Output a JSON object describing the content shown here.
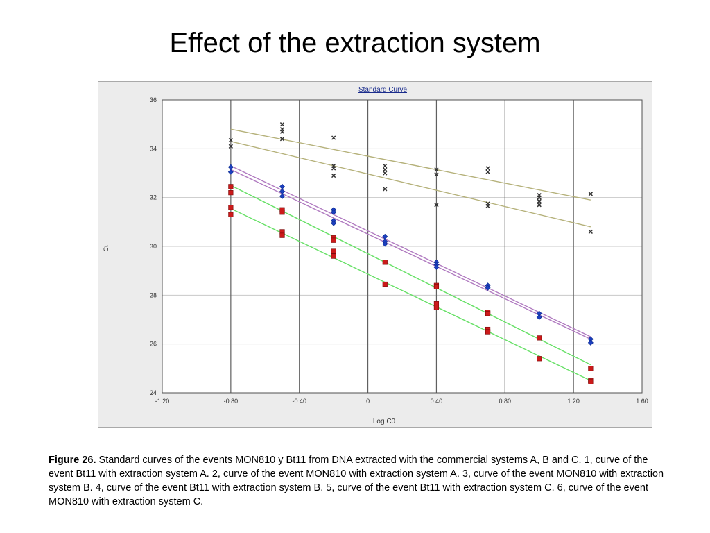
{
  "slide": {
    "title": "Effect of the extraction system"
  },
  "caption": {
    "label": "Figure 26.",
    "text": " Standard curves of the events MON810 y Bt11 from DNA extracted with the commercial systems A, B and C. 1, curve of the event Bt11 with extraction system A. 2, curve of the event MON810 with extraction system A. 3, curve of the event MON810 with extraction system B. 4, curve of the event Bt11 with extraction system B. 5, curve of the event Bt11 with extraction system C. 6, curve of the event MON810 with extraction system C."
  },
  "chart_data": {
    "type": "scatter",
    "title": "Standard Curve",
    "xlabel": "Log C0",
    "ylabel": "Ct",
    "xlim": [
      -1.2,
      1.6
    ],
    "ylim": [
      24,
      36
    ],
    "xticks": [
      "-1.20",
      "-0.80",
      "-0.40",
      "0",
      "0.40",
      "0.80",
      "1.20",
      "1.60"
    ],
    "yticks": [
      "24",
      "26",
      "28",
      "30",
      "32",
      "34",
      "36"
    ],
    "xtick_values": [
      -1.2,
      -0.8,
      -0.4,
      0,
      0.4,
      0.8,
      1.2,
      1.6
    ],
    "ytick_values": [
      24,
      26,
      28,
      30,
      32,
      34,
      36
    ],
    "grid": true,
    "colors": {
      "vertical_grid": "#606060",
      "horizontal_grid": "#c8c8c8",
      "olive_line": "#b5b17a",
      "purple_line": "#b07ac0",
      "green_line": "#66e066",
      "x_marker": "#333333",
      "diamond_marker": "#1c3fbf",
      "square_marker": "#cc1a1a"
    },
    "lines": [
      {
        "style": "olive",
        "x": [
          -0.8,
          1.3
        ],
        "y": [
          34.8,
          31.9
        ]
      },
      {
        "style": "olive",
        "x": [
          -0.8,
          1.3
        ],
        "y": [
          34.3,
          30.8
        ]
      },
      {
        "style": "purple",
        "x": [
          -0.8,
          1.3
        ],
        "y": [
          33.3,
          26.3
        ]
      },
      {
        "style": "purple",
        "x": [
          -0.8,
          1.3
        ],
        "y": [
          33.15,
          26.2
        ]
      },
      {
        "style": "green",
        "x": [
          -0.8,
          1.3
        ],
        "y": [
          32.5,
          25.15
        ]
      },
      {
        "style": "green",
        "x": [
          -0.8,
          1.3
        ],
        "y": [
          31.55,
          24.5
        ]
      }
    ],
    "series": [
      {
        "marker": "x",
        "points": [
          [
            -0.8,
            34.35
          ],
          [
            -0.8,
            34.1
          ],
          [
            -0.5,
            35.0
          ],
          [
            -0.5,
            34.8
          ],
          [
            -0.5,
            34.7
          ],
          [
            -0.5,
            34.4
          ],
          [
            -0.2,
            34.45
          ],
          [
            -0.2,
            33.3
          ],
          [
            -0.2,
            33.2
          ],
          [
            -0.2,
            32.9
          ],
          [
            0.1,
            33.3
          ],
          [
            0.1,
            33.15
          ],
          [
            0.1,
            33.0
          ],
          [
            0.1,
            32.35
          ],
          [
            0.4,
            33.15
          ],
          [
            0.4,
            32.95
          ],
          [
            0.4,
            31.7
          ],
          [
            0.7,
            33.2
          ],
          [
            0.7,
            33.05
          ],
          [
            0.7,
            31.75
          ],
          [
            0.7,
            31.65
          ],
          [
            1.0,
            32.1
          ],
          [
            1.0,
            32.0
          ],
          [
            1.0,
            31.85
          ],
          [
            1.0,
            31.7
          ],
          [
            1.3,
            32.15
          ],
          [
            1.3,
            30.6
          ]
        ]
      },
      {
        "marker": "diamond",
        "points": [
          [
            -0.8,
            33.25
          ],
          [
            -0.8,
            33.05
          ],
          [
            -0.5,
            32.45
          ],
          [
            -0.5,
            32.25
          ],
          [
            -0.5,
            32.05
          ],
          [
            -0.2,
            31.5
          ],
          [
            -0.2,
            31.4
          ],
          [
            -0.2,
            31.05
          ],
          [
            -0.2,
            30.95
          ],
          [
            0.1,
            30.4
          ],
          [
            0.1,
            30.2
          ],
          [
            0.1,
            30.1
          ],
          [
            0.4,
            29.35
          ],
          [
            0.4,
            29.25
          ],
          [
            0.4,
            29.15
          ],
          [
            0.7,
            28.4
          ],
          [
            0.7,
            28.3
          ],
          [
            1.0,
            27.25
          ],
          [
            1.0,
            27.1
          ],
          [
            1.3,
            26.2
          ],
          [
            1.3,
            26.05
          ]
        ]
      },
      {
        "marker": "square",
        "points": [
          [
            -0.8,
            32.45
          ],
          [
            -0.8,
            32.2
          ],
          [
            -0.8,
            31.6
          ],
          [
            -0.8,
            31.3
          ],
          [
            -0.5,
            31.5
          ],
          [
            -0.5,
            31.4
          ],
          [
            -0.5,
            30.6
          ],
          [
            -0.5,
            30.45
          ],
          [
            -0.2,
            30.35
          ],
          [
            -0.2,
            30.25
          ],
          [
            -0.2,
            29.8
          ],
          [
            -0.2,
            29.6
          ],
          [
            0.1,
            29.35
          ],
          [
            0.1,
            28.45
          ],
          [
            0.4,
            28.4
          ],
          [
            0.4,
            28.35
          ],
          [
            0.4,
            27.65
          ],
          [
            0.4,
            27.5
          ],
          [
            0.7,
            27.3
          ],
          [
            0.7,
            27.25
          ],
          [
            0.7,
            26.6
          ],
          [
            0.7,
            26.5
          ],
          [
            1.0,
            26.25
          ],
          [
            1.0,
            25.4
          ],
          [
            1.3,
            25.0
          ],
          [
            1.3,
            24.5
          ],
          [
            1.3,
            24.45
          ]
        ]
      }
    ]
  }
}
